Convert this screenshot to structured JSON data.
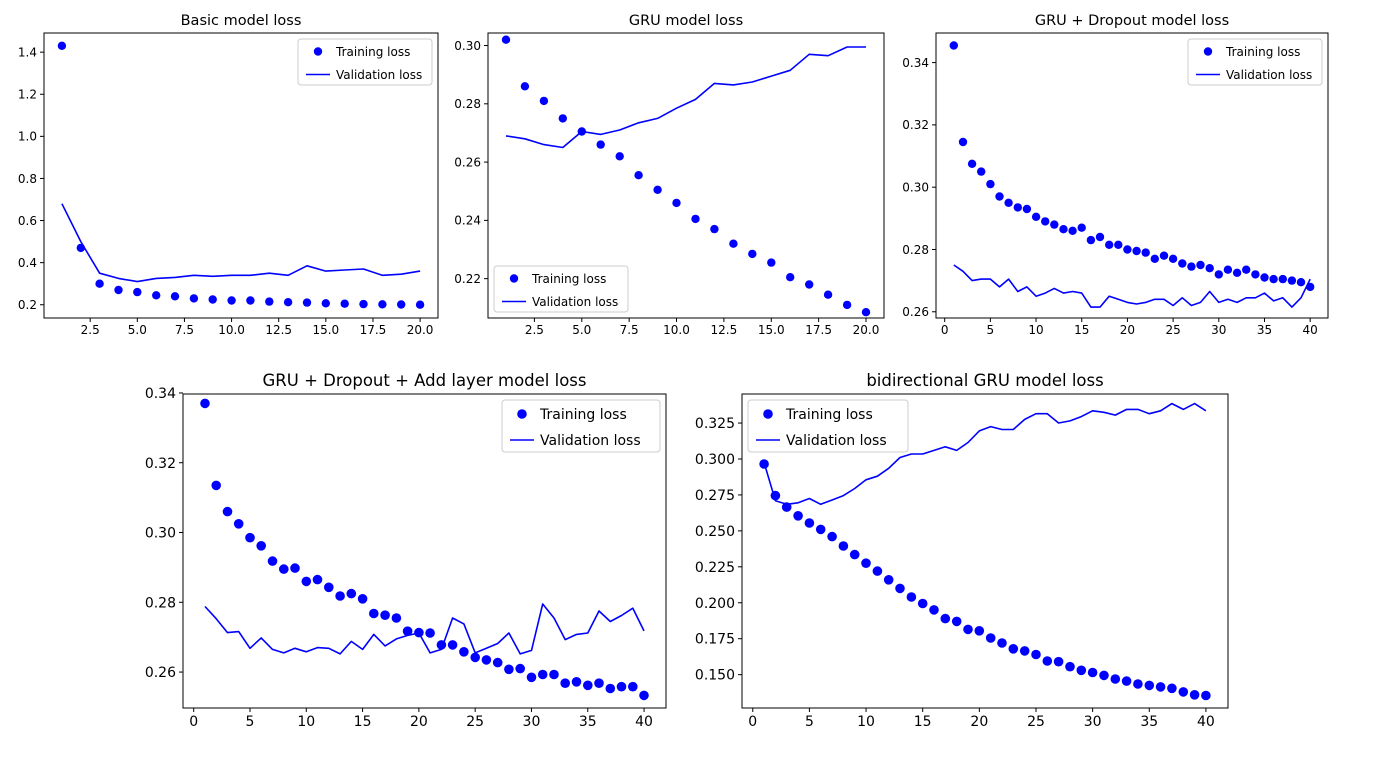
{
  "figure": {
    "colors": {
      "series": "#0000ff",
      "axes": "#000000",
      "background": "#ffffff",
      "legend_border": "#cccccc"
    }
  },
  "chart_data": [
    {
      "type": "line",
      "title": "Basic model loss",
      "xlabel": "",
      "ylabel": "",
      "xlim": [
        0.05,
        20.95
      ],
      "ylim": [
        0.137,
        1.491
      ],
      "xticks": [
        2.5,
        5.0,
        7.5,
        10.0,
        12.5,
        15.0,
        17.5,
        20.0
      ],
      "xtick_labels": [
        "2.5",
        "5.0",
        "7.5",
        "10.0",
        "12.5",
        "15.0",
        "17.5",
        "20.0"
      ],
      "yticks": [
        0.2,
        0.4,
        0.6,
        0.8,
        1.0,
        1.2,
        1.4
      ],
      "ytick_labels": [
        "0.2",
        "0.4",
        "0.6",
        "0.8",
        "1.0",
        "1.2",
        "1.4"
      ],
      "legend": "top-right",
      "grid": false,
      "series": [
        {
          "name": "Training loss",
          "style": "dots",
          "x": [
            1,
            2,
            3,
            4,
            5,
            6,
            7,
            8,
            9,
            10,
            11,
            12,
            13,
            14,
            15,
            16,
            17,
            18,
            19,
            20
          ],
          "y": [
            1.43,
            0.47,
            0.3,
            0.27,
            0.26,
            0.245,
            0.24,
            0.23,
            0.225,
            0.22,
            0.22,
            0.215,
            0.212,
            0.21,
            0.207,
            0.205,
            0.203,
            0.202,
            0.201,
            0.2
          ]
        },
        {
          "name": "Validation loss",
          "style": "line",
          "x": [
            1,
            2,
            3,
            4,
            5,
            6,
            7,
            8,
            9,
            10,
            11,
            12,
            13,
            14,
            15,
            16,
            17,
            18,
            19,
            20
          ],
          "y": [
            0.68,
            0.5,
            0.35,
            0.325,
            0.31,
            0.325,
            0.33,
            0.34,
            0.335,
            0.34,
            0.34,
            0.35,
            0.34,
            0.385,
            0.36,
            0.365,
            0.37,
            0.34,
            0.345,
            0.36
          ]
        }
      ]
    },
    {
      "type": "line",
      "title": "GRU model loss",
      "xlabel": "",
      "ylabel": "",
      "xlim": [
        0.05,
        20.95
      ],
      "ylim": [
        0.2065,
        0.3043
      ],
      "xticks": [
        2.5,
        5.0,
        7.5,
        10.0,
        12.5,
        15.0,
        17.5,
        20.0
      ],
      "xtick_labels": [
        "2.5",
        "5.0",
        "7.5",
        "10.0",
        "12.5",
        "15.0",
        "17.5",
        "20.0"
      ],
      "yticks": [
        0.22,
        0.24,
        0.26,
        0.28,
        0.3
      ],
      "ytick_labels": [
        "0.22",
        "0.24",
        "0.26",
        "0.28",
        "0.30"
      ],
      "legend": "bottom-left",
      "grid": false,
      "series": [
        {
          "name": "Training loss",
          "style": "dots",
          "x": [
            1,
            2,
            3,
            4,
            5,
            6,
            7,
            8,
            9,
            10,
            11,
            12,
            13,
            14,
            15,
            16,
            17,
            18,
            19,
            20
          ],
          "y": [
            0.302,
            0.286,
            0.281,
            0.275,
            0.2705,
            0.266,
            0.262,
            0.2555,
            0.2505,
            0.246,
            0.2405,
            0.237,
            0.232,
            0.2285,
            0.2255,
            0.2205,
            0.218,
            0.2145,
            0.211,
            0.2085
          ]
        },
        {
          "name": "Validation loss",
          "style": "line",
          "x": [
            1,
            2,
            3,
            4,
            5,
            6,
            7,
            8,
            9,
            10,
            11,
            12,
            13,
            14,
            15,
            16,
            17,
            18,
            19,
            20
          ],
          "y": [
            0.269,
            0.268,
            0.266,
            0.265,
            0.2705,
            0.2695,
            0.271,
            0.2735,
            0.275,
            0.2785,
            0.2815,
            0.287,
            0.2865,
            0.2875,
            0.2895,
            0.2915,
            0.297,
            0.2965,
            0.2995,
            0.2995
          ]
        }
      ]
    },
    {
      "type": "line",
      "title": "GRU + Dropout model loss",
      "xlabel": "",
      "ylabel": "",
      "xlim": [
        -0.95,
        41.95
      ],
      "ylim": [
        0.258,
        0.3495
      ],
      "xticks": [
        0,
        5,
        10,
        15,
        20,
        25,
        30,
        35,
        40
      ],
      "xtick_labels": [
        "0",
        "5",
        "10",
        "15",
        "20",
        "25",
        "30",
        "35",
        "40"
      ],
      "yticks": [
        0.26,
        0.28,
        0.3,
        0.32,
        0.34
      ],
      "ytick_labels": [
        "0.26",
        "0.28",
        "0.30",
        "0.32",
        "0.34"
      ],
      "legend": "top-right",
      "grid": false,
      "series": [
        {
          "name": "Training loss",
          "style": "dots",
          "x": [
            1,
            2,
            3,
            4,
            5,
            6,
            7,
            8,
            9,
            10,
            11,
            12,
            13,
            14,
            15,
            16,
            17,
            18,
            19,
            20,
            21,
            22,
            23,
            24,
            25,
            26,
            27,
            28,
            29,
            30,
            31,
            32,
            33,
            34,
            35,
            36,
            37,
            38,
            39,
            40
          ],
          "y": [
            0.3455,
            0.3145,
            0.3075,
            0.305,
            0.301,
            0.297,
            0.295,
            0.2935,
            0.293,
            0.2905,
            0.289,
            0.288,
            0.2865,
            0.286,
            0.287,
            0.283,
            0.284,
            0.2815,
            0.2815,
            0.28,
            0.2795,
            0.279,
            0.277,
            0.278,
            0.277,
            0.2755,
            0.2745,
            0.275,
            0.274,
            0.272,
            0.2735,
            0.2725,
            0.2735,
            0.272,
            0.271,
            0.2705,
            0.2705,
            0.27,
            0.2695,
            0.268
          ]
        },
        {
          "name": "Validation loss",
          "style": "line",
          "x": [
            1,
            2,
            3,
            4,
            5,
            6,
            7,
            8,
            9,
            10,
            11,
            12,
            13,
            14,
            15,
            16,
            17,
            18,
            19,
            20,
            21,
            22,
            23,
            24,
            25,
            26,
            27,
            28,
            29,
            30,
            31,
            32,
            33,
            34,
            35,
            36,
            37,
            38,
            39,
            40
          ],
          "y": [
            0.275,
            0.273,
            0.27,
            0.2705,
            0.2705,
            0.268,
            0.2705,
            0.2665,
            0.268,
            0.265,
            0.266,
            0.2675,
            0.266,
            0.2665,
            0.266,
            0.2615,
            0.2615,
            0.265,
            0.264,
            0.263,
            0.2625,
            0.263,
            0.264,
            0.264,
            0.262,
            0.2645,
            0.262,
            0.263,
            0.2665,
            0.263,
            0.264,
            0.263,
            0.2645,
            0.2645,
            0.266,
            0.2635,
            0.2645,
            0.2615,
            0.2645,
            0.2705
          ]
        }
      ]
    },
    {
      "type": "line",
      "title": "GRU + Dropout + Add layer model loss",
      "xlabel": "",
      "ylabel": "",
      "xlim": [
        -0.95,
        41.95
      ],
      "ylim": [
        0.2497,
        0.3397
      ],
      "xticks": [
        0,
        5,
        10,
        15,
        20,
        25,
        30,
        35,
        40
      ],
      "xtick_labels": [
        "0",
        "5",
        "10",
        "15",
        "20",
        "25",
        "30",
        "35",
        "40"
      ],
      "yticks": [
        0.26,
        0.28,
        0.3,
        0.32,
        0.34
      ],
      "ytick_labels": [
        "0.26",
        "0.28",
        "0.30",
        "0.32",
        "0.34"
      ],
      "legend": "top-right",
      "grid": false,
      "series": [
        {
          "name": "Training loss",
          "style": "dots",
          "x": [
            1,
            2,
            3,
            4,
            5,
            6,
            7,
            8,
            9,
            10,
            11,
            12,
            13,
            14,
            15,
            16,
            17,
            18,
            19,
            20,
            21,
            22,
            23,
            24,
            25,
            26,
            27,
            28,
            29,
            30,
            31,
            32,
            33,
            34,
            35,
            36,
            37,
            38,
            39,
            40
          ],
          "y": [
            0.337,
            0.3135,
            0.306,
            0.3025,
            0.2985,
            0.2962,
            0.2918,
            0.2895,
            0.2898,
            0.286,
            0.2865,
            0.2843,
            0.2818,
            0.2825,
            0.281,
            0.2768,
            0.2763,
            0.2755,
            0.2717,
            0.2713,
            0.2712,
            0.2678,
            0.2678,
            0.2658,
            0.2642,
            0.2635,
            0.2627,
            0.2608,
            0.261,
            0.2585,
            0.2593,
            0.2593,
            0.2568,
            0.2572,
            0.2562,
            0.2568,
            0.2553,
            0.2558,
            0.2558,
            0.2533
          ]
        },
        {
          "name": "Validation loss",
          "style": "line",
          "x": [
            1,
            2,
            3,
            4,
            5,
            6,
            7,
            8,
            9,
            10,
            11,
            12,
            13,
            14,
            15,
            16,
            17,
            18,
            19,
            20,
            21,
            22,
            23,
            24,
            25,
            26,
            27,
            28,
            29,
            30,
            31,
            32,
            33,
            34,
            35,
            36,
            37,
            38,
            39,
            40
          ],
          "y": [
            0.2788,
            0.2753,
            0.2713,
            0.2716,
            0.2668,
            0.2698,
            0.2665,
            0.2655,
            0.2668,
            0.2658,
            0.267,
            0.2668,
            0.2652,
            0.2688,
            0.2665,
            0.2708,
            0.2675,
            0.2695,
            0.2705,
            0.2712,
            0.2655,
            0.2665,
            0.2755,
            0.2738,
            0.2655,
            0.2668,
            0.2682,
            0.2712,
            0.2652,
            0.2662,
            0.2795,
            0.2755,
            0.2693,
            0.2708,
            0.2712,
            0.2775,
            0.2745,
            0.2762,
            0.2783,
            0.2718
          ]
        }
      ]
    },
    {
      "type": "line",
      "title": "bidirectional GRU model loss",
      "xlabel": "",
      "ylabel": "",
      "xlim": [
        -0.95,
        41.95
      ],
      "ylim": [
        0.1268,
        0.3452
      ],
      "xticks": [
        0,
        5,
        10,
        15,
        20,
        25,
        30,
        35,
        40
      ],
      "xtick_labels": [
        "0",
        "5",
        "10",
        "15",
        "20",
        "25",
        "30",
        "35",
        "40"
      ],
      "yticks": [
        0.15,
        0.175,
        0.2,
        0.225,
        0.25,
        0.275,
        0.3,
        0.325
      ],
      "ytick_labels": [
        "0.150",
        "0.175",
        "0.200",
        "0.225",
        "0.250",
        "0.275",
        "0.300",
        "0.325"
      ],
      "legend": "top-left",
      "grid": false,
      "series": [
        {
          "name": "Training loss",
          "style": "dots",
          "x": [
            1,
            2,
            3,
            4,
            5,
            6,
            7,
            8,
            9,
            10,
            11,
            12,
            13,
            14,
            15,
            16,
            17,
            18,
            19,
            20,
            21,
            22,
            23,
            24,
            25,
            26,
            27,
            28,
            29,
            30,
            31,
            32,
            33,
            34,
            35,
            36,
            37,
            38,
            39,
            40
          ],
          "y": [
            0.2965,
            0.2745,
            0.2665,
            0.2605,
            0.2555,
            0.251,
            0.246,
            0.2395,
            0.2335,
            0.2275,
            0.222,
            0.216,
            0.21,
            0.204,
            0.1995,
            0.195,
            0.189,
            0.187,
            0.1815,
            0.1805,
            0.1755,
            0.172,
            0.168,
            0.1665,
            0.164,
            0.1595,
            0.159,
            0.1555,
            0.153,
            0.1515,
            0.1495,
            0.147,
            0.1455,
            0.1435,
            0.1425,
            0.1415,
            0.1405,
            0.138,
            0.136,
            0.1355
          ]
        },
        {
          "name": "Validation loss",
          "style": "line",
          "x": [
            1,
            2,
            3,
            4,
            5,
            6,
            7,
            8,
            9,
            10,
            11,
            12,
            13,
            14,
            15,
            16,
            17,
            18,
            19,
            20,
            21,
            22,
            23,
            24,
            25,
            26,
            27,
            28,
            29,
            30,
            31,
            32,
            33,
            34,
            35,
            36,
            37,
            38,
            39,
            40
          ],
          "y": [
            0.2975,
            0.271,
            0.2685,
            0.2695,
            0.2725,
            0.2685,
            0.2715,
            0.2745,
            0.2795,
            0.2855,
            0.288,
            0.2935,
            0.301,
            0.3035,
            0.3035,
            0.306,
            0.3085,
            0.306,
            0.3115,
            0.3195,
            0.3225,
            0.3205,
            0.3205,
            0.3275,
            0.3315,
            0.3315,
            0.325,
            0.3265,
            0.3295,
            0.3335,
            0.3325,
            0.3305,
            0.3345,
            0.3345,
            0.3315,
            0.3335,
            0.3385,
            0.3345,
            0.3385,
            0.3335
          ]
        }
      ]
    }
  ]
}
